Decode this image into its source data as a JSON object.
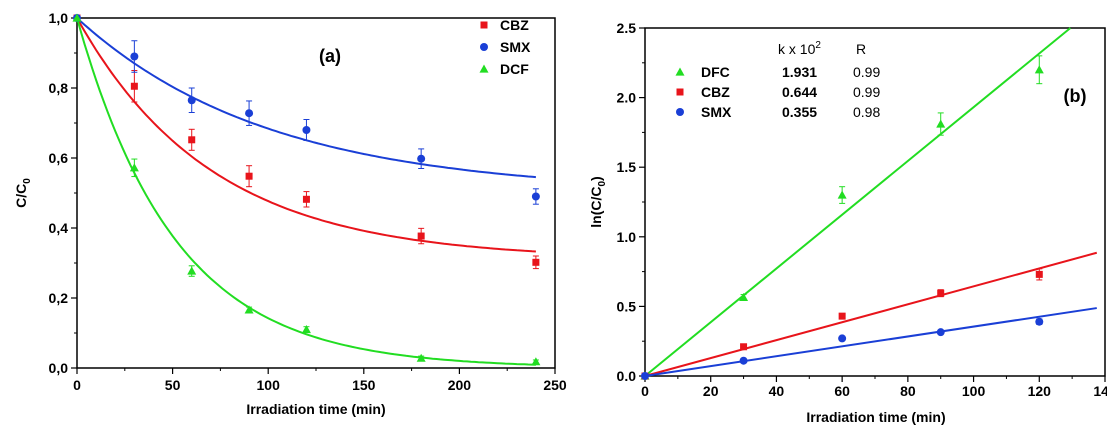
{
  "chart_data": [
    {
      "type": "scatter",
      "panel_label": "(a)",
      "xlabel": "Irradiation time (min)",
      "ylabel_main": "C/C",
      "ylabel_sub": "0",
      "xlim": [
        0,
        250
      ],
      "ylim": [
        0,
        1.0
      ],
      "x_ticks": [
        "0",
        "50",
        "100",
        "150",
        "200",
        "250"
      ],
      "y_ticks": [
        "0,0",
        "0,2",
        "0,4",
        "0,6",
        "0,8",
        "1,0"
      ],
      "legend_position": "top-right",
      "series": [
        {
          "name": "CBZ",
          "color": "#e8141b",
          "marker": "square",
          "x": [
            0,
            30,
            60,
            90,
            120,
            180,
            240
          ],
          "y": [
            1.0,
            0.805,
            0.652,
            0.548,
            0.482,
            0.377,
            0.302
          ],
          "err": [
            0,
            0.045,
            0.03,
            0.03,
            0.022,
            0.022,
            0.018
          ],
          "fit": {
            "model": "exp_plateau",
            "a": 0.31,
            "b": 0.69,
            "k": 0.0142
          }
        },
        {
          "name": "SMX",
          "color": "#1a3fd6",
          "marker": "circle",
          "x": [
            0,
            30,
            60,
            90,
            120,
            180,
            240
          ],
          "y": [
            1.0,
            0.89,
            0.765,
            0.728,
            0.68,
            0.598,
            0.49
          ],
          "err": [
            0,
            0.045,
            0.035,
            0.035,
            0.03,
            0.028,
            0.022
          ],
          "fit": {
            "model": "exp_plateau",
            "a": 0.5,
            "b": 0.5,
            "k": 0.01
          }
        },
        {
          "name": "DCF",
          "color": "#22dd22",
          "marker": "triangle",
          "x": [
            0,
            30,
            60,
            90,
            120,
            180,
            240
          ],
          "y": [
            1.0,
            0.572,
            0.277,
            0.166,
            0.11,
            0.028,
            0.018
          ],
          "err": [
            0,
            0.025,
            0.015,
            0.008,
            0.008,
            0.006,
            0.005
          ],
          "fit": {
            "model": "exp_plateau",
            "a": 0.0,
            "b": 1.0,
            "k": 0.0195
          }
        }
      ]
    },
    {
      "type": "scatter",
      "panel_label": "(b)",
      "xlabel": "Irradiation time (min)",
      "ylabel_main": "ln(C/C",
      "ylabel_sub": "0",
      "ylabel_end": ")",
      "xlim": [
        0,
        140
      ],
      "ylim": [
        0,
        2.5
      ],
      "x_ticks": [
        "0",
        "20",
        "40",
        "60",
        "80",
        "100",
        "120",
        "140"
      ],
      "y_ticks": [
        "0.0",
        "0.5",
        "1.0",
        "1.5",
        "2.0",
        "2.5"
      ],
      "legend_position": "top-left",
      "legend_header": {
        "k": "k x 10",
        "k_sup": "2",
        "r": "R"
      },
      "series": [
        {
          "name": "DFC",
          "color": "#22dd22",
          "marker": "triangle",
          "k": "1.931",
          "r": "0.99",
          "x": [
            0,
            30,
            60,
            90,
            120
          ],
          "y": [
            0.0,
            0.565,
            1.3,
            1.81,
            2.2
          ],
          "err": [
            0,
            0.02,
            0.06,
            0.08,
            0.1
          ],
          "slope": 0.01931
        },
        {
          "name": "CBZ",
          "color": "#e8141b",
          "marker": "square",
          "k": "0.644",
          "r": "0.99",
          "x": [
            0,
            30,
            60,
            90,
            120
          ],
          "y": [
            0.0,
            0.21,
            0.43,
            0.595,
            0.73
          ],
          "err": [
            0,
            0.01,
            0.01,
            0.025,
            0.04
          ],
          "slope": 0.00644
        },
        {
          "name": "SMX",
          "color": "#1a3fd6",
          "marker": "circle",
          "k": "0.355",
          "r": "0.98",
          "x": [
            0,
            30,
            60,
            90,
            120
          ],
          "y": [
            0.0,
            0.11,
            0.27,
            0.315,
            0.39
          ],
          "err": [
            0,
            0.008,
            0.008,
            0.01,
            0.02
          ],
          "slope": 0.00355
        }
      ]
    }
  ]
}
